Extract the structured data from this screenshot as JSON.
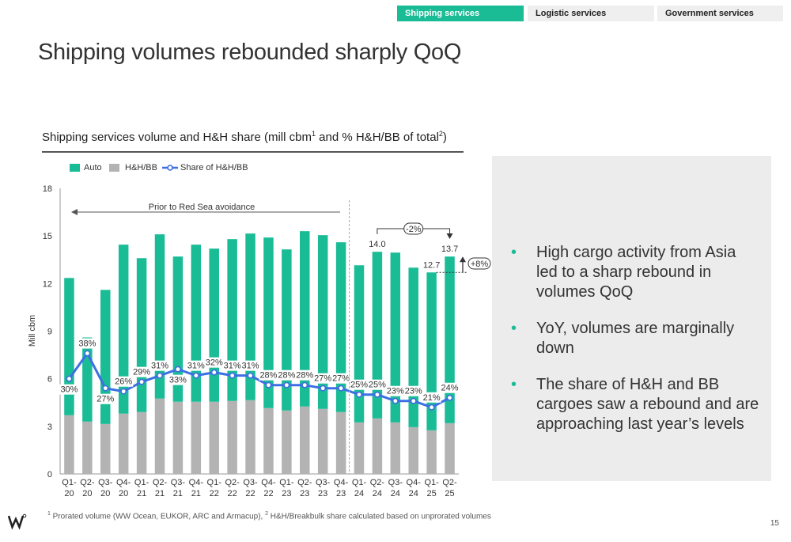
{
  "tabs": [
    {
      "label": "Shipping services",
      "active": true
    },
    {
      "label": "Logistic services",
      "active": false
    },
    {
      "label": "Government services",
      "active": false
    }
  ],
  "page_title": "Shipping volumes rebounded sharply QoQ",
  "chart_title": {
    "main": "Shipping services volume and H&H share (mill cbm",
    "sup1": "1",
    "mid": " and % H&H/BB of total",
    "sup2": "2",
    "end": ")"
  },
  "legend": {
    "auto": "Auto",
    "hh": "H&H/BB",
    "share": "Share of H&H/BB"
  },
  "colors": {
    "auto": "#1abc96",
    "hh": "#b3b3b3",
    "share": "#3d6fe3",
    "accent": "#1abc96"
  },
  "chart_data": {
    "type": "bar",
    "stacked": true,
    "categories": [
      "Q1-20",
      "Q2-20",
      "Q3-20",
      "Q4-20",
      "Q1-21",
      "Q2-21",
      "Q3-21",
      "Q4-21",
      "Q1-22",
      "Q2-22",
      "Q3-22",
      "Q4-22",
      "Q1-23",
      "Q2-23",
      "Q3-23",
      "Q4-23",
      "Q1-24",
      "Q2-24",
      "Q3-24",
      "Q4-24",
      "Q1-25",
      "Q2-25"
    ],
    "category_lines": [
      [
        "Q1-",
        "20"
      ],
      [
        "Q2-",
        "20"
      ],
      [
        "Q3-",
        "20"
      ],
      [
        "Q4-",
        "20"
      ],
      [
        "Q1-",
        "21"
      ],
      [
        "Q2-",
        "21"
      ],
      [
        "Q3-",
        "21"
      ],
      [
        "Q4-",
        "21"
      ],
      [
        "Q1-",
        "22"
      ],
      [
        "Q2-",
        "22"
      ],
      [
        "Q3-",
        "22"
      ],
      [
        "Q4-",
        "22"
      ],
      [
        "Q1-",
        "23"
      ],
      [
        "Q2-",
        "23"
      ],
      [
        "Q3-",
        "23"
      ],
      [
        "Q4-",
        "23"
      ],
      [
        "Q1-",
        "24"
      ],
      [
        "Q2-",
        "24"
      ],
      [
        "Q3-",
        "24"
      ],
      [
        "Q4-",
        "24"
      ],
      [
        "Q1-",
        "25"
      ],
      [
        "Q2-",
        "25"
      ]
    ],
    "series": [
      {
        "name": "H&H/BB",
        "values": [
          3.7,
          3.3,
          3.15,
          3.8,
          3.9,
          4.75,
          4.55,
          4.55,
          4.55,
          4.6,
          4.65,
          4.15,
          4.0,
          4.25,
          4.1,
          3.9,
          3.25,
          3.5,
          3.25,
          2.95,
          2.75,
          3.2
        ]
      },
      {
        "name": "Auto",
        "values": [
          8.65,
          5.3,
          8.45,
          10.65,
          9.7,
          10.35,
          9.15,
          9.9,
          9.65,
          10.2,
          10.5,
          10.75,
          10.15,
          11.05,
          10.95,
          10.7,
          9.9,
          10.5,
          10.7,
          10.05,
          9.95,
          10.5
        ]
      }
    ],
    "share": {
      "name": "Share of H&H/BB",
      "labels": [
        "30%",
        "38%",
        "27%",
        "26%",
        "29%",
        "31%",
        "33%",
        "31%",
        "32%",
        "31%",
        "31%",
        "28%",
        "28%",
        "28%",
        "27%",
        "27%",
        "25%",
        "25%",
        "23%",
        "23%",
        "21%",
        "24%"
      ],
      "values": [
        30,
        38,
        27,
        26,
        29,
        31,
        33,
        31,
        32,
        31,
        31,
        28,
        28,
        28,
        27,
        27,
        25,
        25,
        23,
        23,
        21,
        24
      ]
    },
    "total_labels": [
      {
        "index": 17,
        "text": "14.0"
      },
      {
        "index": 20,
        "text": "12.7"
      },
      {
        "index": 21,
        "text": "13.7"
      }
    ],
    "ylabel": "Mill cbm",
    "ylim": [
      0,
      18
    ],
    "yticks": [
      "0",
      "3",
      "6",
      "9",
      "12",
      "15",
      "18"
    ],
    "annotations": {
      "red_sea": "Prior to Red Sea avoidance",
      "yoy": "-2%",
      "qoq": "+8%"
    }
  },
  "bullets": [
    "High cargo activity from Asia led to a sharp rebound in volumes QoQ",
    "YoY, volumes are marginally down",
    "The share of H&H and BB cargoes saw a rebound and are approaching last year’s levels"
  ],
  "bullet_symbol": "•",
  "footnote": {
    "sup1": "1",
    "text1": " Prorated volume (WW Ocean, EUKOR, ARC and Armacup), ",
    "sup2": "2",
    "text2": " H&H/Breakbulk share calculated based on unprorated volumes"
  },
  "logo_text": "W",
  "page_number": "15"
}
